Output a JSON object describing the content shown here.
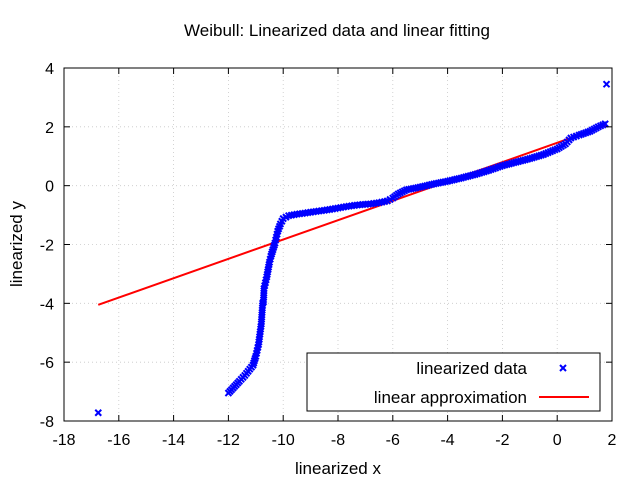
{
  "chart_data": {
    "type": "scatter",
    "title": "Weibull: Linearized data and linear fitting",
    "xlabel": "linearized x",
    "ylabel": "linearized y",
    "xlim": [
      -18,
      2
    ],
    "ylim": [
      -8,
      4
    ],
    "x_ticks": [
      -18,
      -16,
      -14,
      -12,
      -10,
      -8,
      -6,
      -4,
      -2,
      0,
      2
    ],
    "y_ticks": [
      -8,
      -6,
      -4,
      -2,
      0,
      2,
      4
    ],
    "x_tick_labels": [
      "-18",
      "-16",
      "-14",
      "-12",
      "-10",
      "-8",
      "-6",
      "-4",
      "-2",
      "0",
      "2"
    ],
    "y_tick_labels": [
      "-8",
      "-6",
      "-4",
      "-2",
      "0",
      "2",
      "4"
    ],
    "grid": true,
    "legend": {
      "placement": "bottom-right",
      "entries": [
        "linearized data",
        "linear approximation"
      ]
    },
    "series": [
      {
        "name": "linearized data",
        "kind": "scatter",
        "marker": "x",
        "color": "#0000ff",
        "points": [
          [
            -16.75,
            -7.72
          ],
          [
            -12.0,
            -7.05
          ],
          [
            -11.6,
            -6.65
          ],
          [
            -11.4,
            -6.45
          ],
          [
            -11.1,
            -6.1
          ],
          [
            -11.0,
            -5.8
          ],
          [
            -10.95,
            -5.6
          ],
          [
            -10.9,
            -5.4
          ],
          [
            -10.85,
            -5.05
          ],
          [
            -10.8,
            -4.7
          ],
          [
            -10.75,
            -4.0
          ],
          [
            -10.72,
            -3.95
          ],
          [
            -10.7,
            -3.5
          ],
          [
            -10.65,
            -3.3
          ],
          [
            -10.6,
            -3.1
          ],
          [
            -10.55,
            -2.85
          ],
          [
            -10.5,
            -2.6
          ],
          [
            -10.45,
            -2.4
          ],
          [
            -10.4,
            -2.25
          ],
          [
            -10.35,
            -2.1
          ],
          [
            -10.3,
            -1.95
          ],
          [
            -10.25,
            -1.75
          ],
          [
            -10.2,
            -1.55
          ],
          [
            -10.1,
            -1.3
          ],
          [
            -10.0,
            -1.12
          ],
          [
            -9.8,
            -1.02
          ],
          [
            -9.5,
            -0.97
          ],
          [
            -9.2,
            -0.93
          ],
          [
            -8.9,
            -0.89
          ],
          [
            -8.6,
            -0.85
          ],
          [
            -8.3,
            -0.81
          ],
          [
            -8.0,
            -0.76
          ],
          [
            -7.7,
            -0.71
          ],
          [
            -7.4,
            -0.67
          ],
          [
            -7.1,
            -0.64
          ],
          [
            -6.8,
            -0.62
          ],
          [
            -6.5,
            -0.58
          ],
          [
            -6.2,
            -0.52
          ],
          [
            -6.0,
            -0.42
          ],
          [
            -5.8,
            -0.28
          ],
          [
            -5.5,
            -0.14
          ],
          [
            -5.0,
            -0.05
          ],
          [
            -4.5,
            0.06
          ],
          [
            -4.0,
            0.15
          ],
          [
            -3.5,
            0.26
          ],
          [
            -3.0,
            0.38
          ],
          [
            -2.5,
            0.52
          ],
          [
            -2.0,
            0.68
          ],
          [
            -1.5,
            0.8
          ],
          [
            -1.0,
            0.92
          ],
          [
            -0.5,
            1.06
          ],
          [
            0.0,
            1.25
          ],
          [
            0.3,
            1.42
          ],
          [
            0.5,
            1.62
          ],
          [
            0.8,
            1.72
          ],
          [
            1.2,
            1.85
          ],
          [
            1.5,
            2.0
          ],
          [
            1.75,
            2.1
          ],
          [
            1.8,
            3.45
          ]
        ]
      },
      {
        "name": "linear approximation",
        "kind": "line",
        "color": "#ff0000",
        "points": [
          [
            -16.75,
            -4.05
          ],
          [
            1.8,
            2.05
          ]
        ]
      }
    ]
  }
}
